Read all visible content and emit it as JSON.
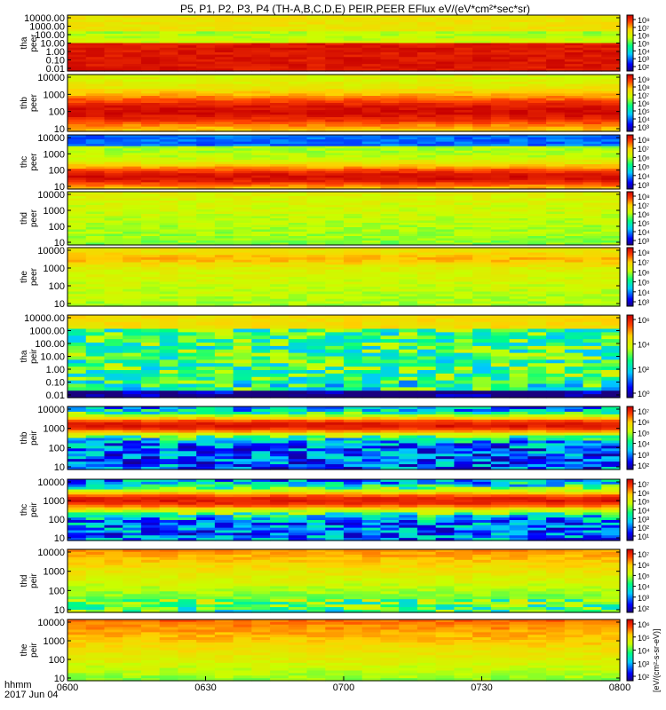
{
  "title": "P5, P1, P2, P3, P4 (TH-A,B,C,D,E) PEIR,PEER EFlux eV/(eV*cm²*sec*sr)",
  "time_axis": {
    "label_line1": "hhmm",
    "label_line2": "2017 Jun 04",
    "ticks": [
      "0600",
      "0630",
      "0700",
      "0730",
      "0800"
    ]
  },
  "colorbar_label": "[eV/(cm²-s-sr-eV)]",
  "chart_data": [
    {
      "type": "heatmap",
      "probe": "tha",
      "species": "peer",
      "ylabel_line1": "tha",
      "ylabel_line2": "peer",
      "yticks": [
        "10000.00",
        "1000.00",
        "100.00",
        "10.00",
        "1.00",
        "0.10",
        "0.01"
      ],
      "colorbar_ticks": [
        "10⁸",
        "10⁷",
        "10⁶",
        "10⁵",
        "10⁴",
        "10³",
        "10²"
      ]
    },
    {
      "type": "heatmap",
      "probe": "thb",
      "species": "peer",
      "ylabel_line1": "thb",
      "ylabel_line2": "peer",
      "yticks": [
        "10000",
        "1000",
        "100",
        "10"
      ],
      "colorbar_ticks": [
        "10⁹",
        "10⁸",
        "10⁷",
        "10⁶",
        "10⁵",
        "10⁴",
        "10³"
      ]
    },
    {
      "type": "heatmap",
      "probe": "thc",
      "species": "peer",
      "ylabel_line1": "thc",
      "ylabel_line2": "peer",
      "yticks": [
        "10000",
        "1000",
        "100",
        "10"
      ],
      "colorbar_ticks": [
        "10⁸",
        "10⁷",
        "10⁶",
        "10⁵",
        "10⁴",
        "10³"
      ]
    },
    {
      "type": "heatmap",
      "probe": "thd",
      "species": "peer",
      "ylabel_line1": "thd",
      "ylabel_line2": "peer",
      "yticks": [
        "10000",
        "1000",
        "100",
        "10"
      ],
      "colorbar_ticks": [
        "10⁸",
        "10⁷",
        "10⁶",
        "10⁵",
        "10⁴",
        "10³"
      ]
    },
    {
      "type": "heatmap",
      "probe": "the",
      "species": "peer",
      "ylabel_line1": "the",
      "ylabel_line2": "peer",
      "yticks": [
        "10000",
        "1000",
        "100",
        "10"
      ],
      "colorbar_ticks": [
        "10⁸",
        "10⁷",
        "10⁶",
        "10⁵",
        "10⁴",
        "10³"
      ]
    },
    {
      "type": "heatmap",
      "probe": "tha",
      "species": "peir",
      "ylabel_line1": "tha",
      "ylabel_line2": "peir",
      "yticks": [
        "10000.00",
        "1000.00",
        "100.00",
        "10.00",
        "1.00",
        "0.10",
        "0.01"
      ],
      "colorbar_ticks": [
        "10⁶",
        "10⁴",
        "10²",
        "10⁰"
      ]
    },
    {
      "type": "heatmap",
      "probe": "thb",
      "species": "peir",
      "ylabel_line1": "thb",
      "ylabel_line2": "peir",
      "yticks": [
        "10000",
        "1000",
        "100",
        "10"
      ],
      "colorbar_ticks": [
        "10⁷",
        "10⁶",
        "10⁵",
        "10⁴",
        "10³",
        "10²"
      ]
    },
    {
      "type": "heatmap",
      "probe": "thc",
      "species": "peir",
      "ylabel_line1": "thc",
      "ylabel_line2": "peir",
      "yticks": [
        "10000",
        "1000",
        "100",
        "10"
      ],
      "colorbar_ticks": [
        "10⁷",
        "10⁶",
        "10⁵",
        "10⁴",
        "10³",
        "10²",
        "10¹"
      ]
    },
    {
      "type": "heatmap",
      "probe": "thd",
      "species": "peir",
      "ylabel_line1": "thd",
      "ylabel_line2": "peir",
      "yticks": [
        "10000",
        "1000",
        "100",
        "10"
      ],
      "colorbar_ticks": [
        "10⁷",
        "10⁶",
        "10⁵",
        "10⁴",
        "10³",
        "10²"
      ]
    },
    {
      "type": "heatmap",
      "probe": "the",
      "species": "peir",
      "ylabel_line1": "the",
      "ylabel_line2": "peir",
      "yticks": [
        "10000",
        "1000",
        "100",
        "10"
      ],
      "colorbar_ticks": [
        "10⁶",
        "10⁵",
        "10⁴",
        "10³",
        "10²"
      ]
    }
  ]
}
